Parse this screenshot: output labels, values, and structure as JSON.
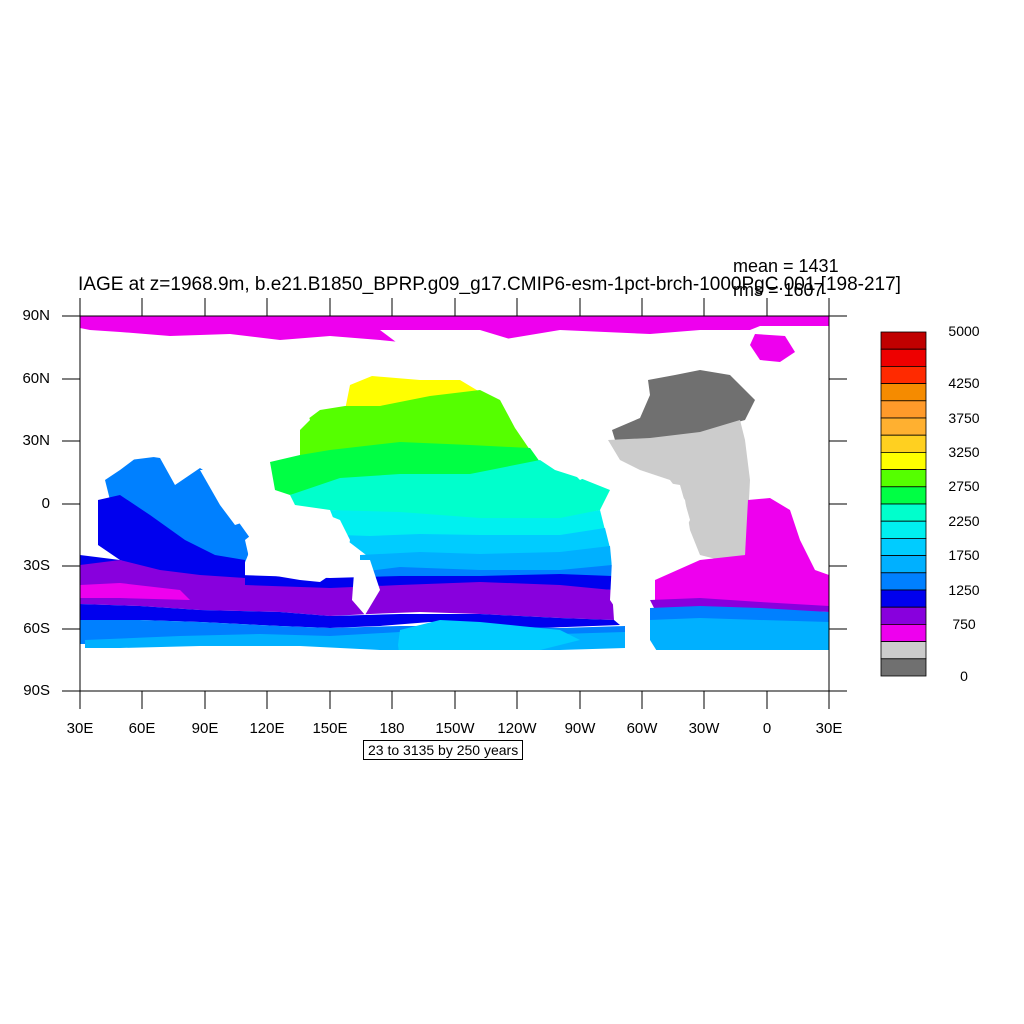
{
  "title": "IAGE at z=1968.9m, b.e21.B1850_BPRP.g09_g17.CMIP6-esm-1pct-brch-1000PgC.001 [198-217]",
  "stats": {
    "mean": "mean = 1431",
    "rms": "rms = 1607"
  },
  "info_box": "23 to 3135 by 250 years",
  "x_ticks": [
    "30E",
    "60E",
    "90E",
    "120E",
    "150E",
    "180",
    "150W",
    "120W",
    "90W",
    "60W",
    "30W",
    "0",
    "30E"
  ],
  "y_ticks": [
    "90N",
    "60N",
    "30N",
    "0",
    "30S",
    "60S",
    "90S"
  ],
  "colorbar": {
    "labels": [
      "5000",
      "4250",
      "3750",
      "3250",
      "2750",
      "2250",
      "1750",
      "1250",
      "750",
      "0"
    ],
    "colors": [
      "#c00000",
      "#ee0000",
      "#ff2a00",
      "#f58b00",
      "#ff9a2a",
      "#ffb030",
      "#ffd020",
      "#ffff00",
      "#55ff00",
      "#00ff44",
      "#00ffcc",
      "#00f0f0",
      "#00ccff",
      "#00b0ff",
      "#0080ff",
      "#0000ee",
      "#8800dd",
      "#ee00ee",
      "#cccccc",
      "#707070"
    ]
  },
  "palette": {
    "gray_dark": "#707070",
    "gray_light": "#cccccc",
    "magenta": "#ee00ee",
    "purple": "#8800dd",
    "blue": "#0000ee",
    "mid_blue": "#0080ff",
    "sky": "#00b0ff",
    "light_sky": "#00ccff",
    "cyan": "#00f0f0",
    "aqua": "#00ffcc",
    "green": "#00ff44",
    "lime": "#55ff00",
    "yellow": "#ffff00"
  }
}
